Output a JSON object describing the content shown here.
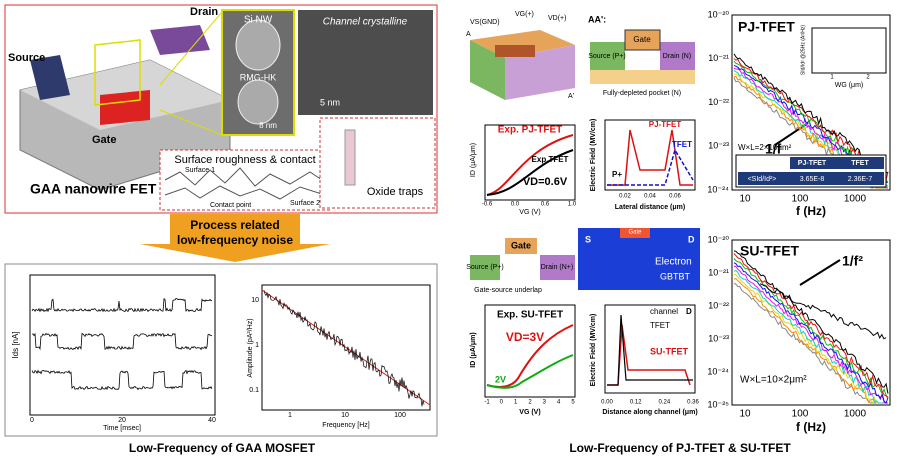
{
  "left": {
    "device": {
      "title": "GAA nanowire FET",
      "labels": [
        "Source",
        "Drain",
        "Gate"
      ],
      "tem": [
        "Si NW",
        "RMG-HK",
        "8 nm",
        "Channel crystalline",
        "5 nm"
      ],
      "roughness": [
        "Surface roughness & contact",
        "Surface 1",
        "Surface 2",
        "Contact point"
      ],
      "traps": "Oxide traps"
    },
    "arrow": [
      "Process related",
      "low-frequency noise"
    ],
    "rts": {
      "ylabel": "Ids [nA]",
      "xlabel": "Time [msec]",
      "xticks": [
        "0",
        "20",
        "40"
      ]
    },
    "psd": {
      "ylabel": "Amplitude (pA²/Hz)",
      "xlabel": "Frequency [Hz]",
      "yticks": [
        "10",
        "1",
        "0.1"
      ],
      "xticks": [
        "1",
        "10",
        "100"
      ]
    },
    "caption": "Low-Frequency of GAA MOSFET"
  },
  "right": {
    "schematic": {
      "labels": [
        "VS(GND)",
        "VG(+)",
        "VD(+)",
        "A",
        "A'"
      ]
    },
    "section": {
      "title": "AA':",
      "labels": [
        "Gate",
        "Source (P+)",
        "Drain (N)",
        "Fully-depleted pocket (N)"
      ]
    },
    "pj_iv": {
      "labels": [
        "Exp. PJ-TFET",
        "Exp.TFET",
        "VD=0.6V"
      ],
      "ylabel": "ID (μA/μm)",
      "xlabel": "VG (V)",
      "xticks": [
        "-0.6",
        "0.0",
        "0.6",
        "1.0"
      ]
    },
    "pj_field": {
      "labels": [
        "PJ-TFET",
        "TFET",
        "P+"
      ],
      "ylabel": "Electric Field (MV/cm)",
      "xlabel": "Lateral distance (μm)",
      "xticks": [
        "0.02",
        "0.04",
        "0.06"
      ]
    },
    "su_schematic": {
      "labels": [
        "Gate",
        "Source (P+)",
        "Drain (N+)",
        "Gate-source underlap"
      ]
    },
    "contour": {
      "labels": [
        "S",
        "D",
        "Gate",
        "Electron",
        "GBTBT"
      ]
    },
    "su_iv": {
      "labels": [
        "Exp. SU-TFET",
        "VD=3V",
        "2V"
      ],
      "ylabel": "ID (μA/μm)",
      "xlabel": "VG (V)",
      "xticks": [
        "-1",
        "0",
        "1",
        "2",
        "3",
        "4",
        "5"
      ]
    },
    "su_field": {
      "labels": [
        "channel",
        "TFET",
        "SU-TFET",
        "D"
      ],
      "ylabel": "Electric Field (MV/cm)",
      "xlabel": "Distance along channel (μm)",
      "xticks": [
        "0.00",
        "0.12",
        "0.24",
        "0.36"
      ]
    },
    "pj_noise": {
      "title": "PJ-TFET",
      "slope": "1/f",
      "yticks": [
        "10⁻²⁰",
        "10⁻²¹",
        "10⁻²²",
        "10⁻²³",
        "10⁻²⁴"
      ],
      "xticks": [
        "10",
        "100",
        "1000"
      ],
      "xlabel": "f (Hz)",
      "inset": {
        "ylabel": "SId/Id² @25Hz (A²/Hz)",
        "xlabel": "WG (μm)",
        "xticks": [
          "1",
          "2"
        ]
      },
      "size": "W×L=2×10μm²",
      "table": {
        "header": [
          "PJ-TFET",
          "TFET"
        ],
        "row": [
          "<SId/Id²>",
          "3.65E-8",
          "2.36E-7"
        ]
      }
    },
    "su_noise": {
      "title": "SU-TFET",
      "slope": "1/f²",
      "yticks": [
        "10⁻²⁰",
        "10⁻²¹",
        "10⁻²²",
        "10⁻²³",
        "10⁻²⁴",
        "10⁻²⁵"
      ],
      "xticks": [
        "10",
        "100",
        "1000"
      ],
      "xlabel": "f (Hz)",
      "size": "W×L=10×2μm²"
    },
    "caption": "Low-Frequency of PJ-TFET & SU-TFET"
  }
}
